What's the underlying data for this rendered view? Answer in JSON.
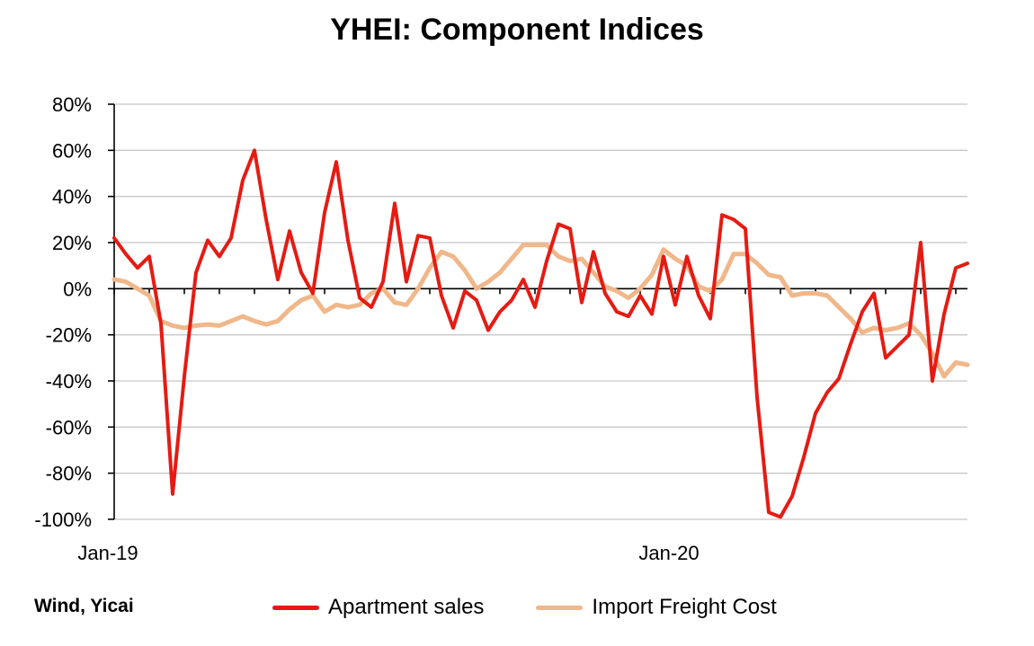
{
  "chart_data": {
    "type": "line",
    "title": "YHEI: Component Indices",
    "source": "Wind, Yicai",
    "x_tick_labels": [
      "Jan-19",
      "Jan-20"
    ],
    "ylim": [
      -1.0,
      0.8
    ],
    "yticks": [
      0.8,
      0.6,
      0.4,
      0.2,
      0.0,
      -0.2,
      -0.4,
      -0.6,
      -0.8,
      -1.0
    ],
    "ytick_labels": [
      "80%",
      "60%",
      "40%",
      "20%",
      "0%",
      "-20%",
      "-40%",
      "-60%",
      "-80%",
      "-100%"
    ],
    "grid": true,
    "legend_position": "bottom",
    "series": [
      {
        "name": "Apartment sales",
        "color": "#e51b13",
        "values": [
          0.22,
          0.15,
          0.09,
          0.14,
          -0.15,
          -0.89,
          -0.38,
          0.07,
          0.21,
          0.14,
          0.22,
          0.47,
          0.6,
          0.3,
          0.04,
          0.25,
          0.07,
          -0.02,
          0.33,
          0.55,
          0.21,
          -0.04,
          -0.08,
          0.03,
          0.37,
          0.03,
          0.23,
          0.22,
          -0.03,
          -0.17,
          -0.01,
          -0.05,
          -0.18,
          -0.1,
          -0.05,
          0.04,
          -0.08,
          0.12,
          0.28,
          0.26,
          -0.06,
          0.16,
          -0.02,
          -0.1,
          -0.12,
          -0.03,
          -0.11,
          0.14,
          -0.07,
          0.14,
          -0.03,
          -0.13,
          0.32,
          0.3,
          0.26,
          -0.47,
          -0.97,
          -0.99,
          -0.9,
          -0.73,
          -0.54,
          -0.45,
          -0.39,
          -0.24,
          -0.1,
          -0.02,
          -0.3,
          -0.25,
          -0.2,
          0.2,
          -0.4,
          -0.11,
          0.09,
          0.11
        ]
      },
      {
        "name": "Import Freight Cost",
        "color": "#f0b78a",
        "values": [
          0.04,
          0.03,
          0.0,
          -0.03,
          -0.14,
          -0.16,
          -0.17,
          -0.16,
          -0.155,
          -0.16,
          -0.14,
          -0.12,
          -0.14,
          -0.155,
          -0.14,
          -0.09,
          -0.05,
          -0.03,
          -0.1,
          -0.07,
          -0.08,
          -0.07,
          -0.02,
          0.0,
          -0.06,
          -0.07,
          0.0,
          0.09,
          0.16,
          0.14,
          0.08,
          0.0,
          0.03,
          0.07,
          0.13,
          0.19,
          0.19,
          0.19,
          0.14,
          0.12,
          0.13,
          0.07,
          0.01,
          -0.01,
          -0.04,
          0.0,
          0.06,
          0.17,
          0.13,
          0.1,
          0.01,
          -0.01,
          0.04,
          0.15,
          0.15,
          0.11,
          0.06,
          0.05,
          -0.03,
          -0.02,
          -0.02,
          -0.03,
          -0.08,
          -0.13,
          -0.19,
          -0.17,
          -0.18,
          -0.17,
          -0.15,
          -0.2,
          -0.28,
          -0.38,
          -0.32,
          -0.33
        ]
      }
    ]
  }
}
